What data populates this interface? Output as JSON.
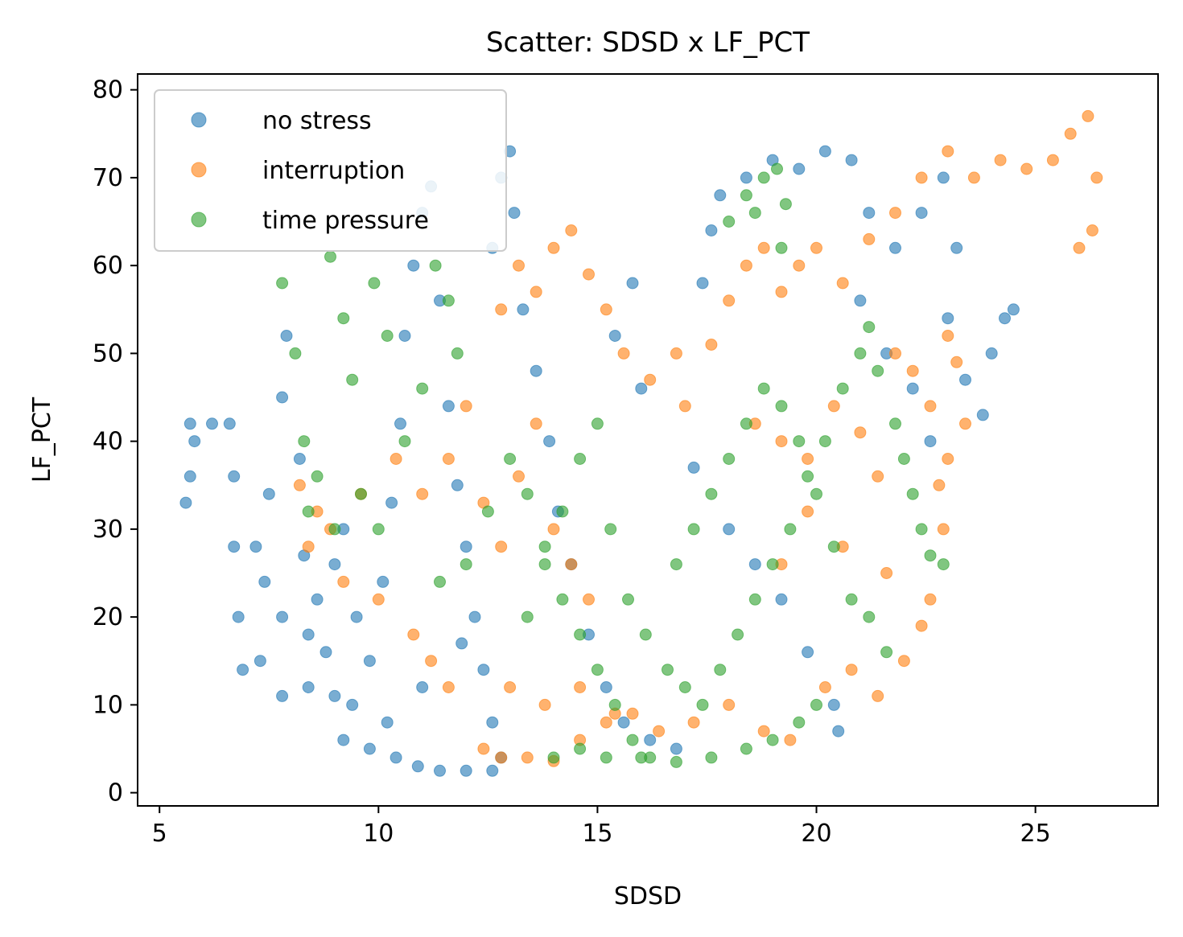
{
  "chart_data": {
    "type": "scatter",
    "title": "Scatter: SDSD x LF_PCT",
    "xlabel": "SDSD",
    "ylabel": "LF_PCT",
    "xlim": [
      4.5,
      27.8
    ],
    "ylim": [
      -1.5,
      81.8
    ],
    "xticks": [
      5,
      10,
      15,
      20,
      25
    ],
    "yticks": [
      0,
      10,
      20,
      30,
      40,
      50,
      60,
      70,
      80
    ],
    "grid": false,
    "legend_position": "top-left",
    "series": [
      {
        "name": "no stress",
        "color": "#1f77b4",
        "points": [
          [
            5.6,
            33
          ],
          [
            5.7,
            36
          ],
          [
            5.8,
            40
          ],
          [
            5.7,
            42
          ],
          [
            6.2,
            42
          ],
          [
            6.6,
            42
          ],
          [
            6.7,
            36
          ],
          [
            6.7,
            28
          ],
          [
            6.8,
            20
          ],
          [
            6.9,
            14
          ],
          [
            7.3,
            15
          ],
          [
            7.8,
            11
          ],
          [
            8.4,
            12
          ],
          [
            9.0,
            11
          ],
          [
            9.4,
            10
          ],
          [
            7.2,
            28
          ],
          [
            7.4,
            24
          ],
          [
            7.5,
            34
          ],
          [
            7.8,
            20
          ],
          [
            7.8,
            45
          ],
          [
            7.9,
            52
          ],
          [
            8.2,
            38
          ],
          [
            8.3,
            27
          ],
          [
            8.4,
            18
          ],
          [
            8.6,
            22
          ],
          [
            8.8,
            16
          ],
          [
            9.0,
            26
          ],
          [
            9.2,
            30
          ],
          [
            9.5,
            20
          ],
          [
            9.8,
            15
          ],
          [
            10.1,
            24
          ],
          [
            10.3,
            33
          ],
          [
            10.5,
            42
          ],
          [
            10.6,
            52
          ],
          [
            10.8,
            60
          ],
          [
            11.0,
            66
          ],
          [
            11.2,
            69
          ],
          [
            11.4,
            56
          ],
          [
            11.6,
            44
          ],
          [
            11.8,
            35
          ],
          [
            12.0,
            28
          ],
          [
            12.2,
            20
          ],
          [
            12.4,
            14
          ],
          [
            12.6,
            8
          ],
          [
            12.8,
            4
          ],
          [
            9.2,
            6
          ],
          [
            9.8,
            5
          ],
          [
            10.4,
            4
          ],
          [
            10.9,
            3
          ],
          [
            11.4,
            2.5
          ],
          [
            12.0,
            2.5
          ],
          [
            12.6,
            2.5
          ],
          [
            10.2,
            8
          ],
          [
            11.0,
            12
          ],
          [
            11.9,
            17
          ],
          [
            12.6,
            62
          ],
          [
            12.8,
            70
          ],
          [
            13.0,
            73
          ],
          [
            13.1,
            66
          ],
          [
            13.3,
            55
          ],
          [
            13.6,
            48
          ],
          [
            13.9,
            40
          ],
          [
            14.1,
            32
          ],
          [
            14.4,
            26
          ],
          [
            14.8,
            18
          ],
          [
            15.2,
            12
          ],
          [
            15.6,
            8
          ],
          [
            16.2,
            6
          ],
          [
            16.8,
            5
          ],
          [
            15.8,
            58
          ],
          [
            15.4,
            52
          ],
          [
            16.0,
            46
          ],
          [
            17.2,
            37
          ],
          [
            18.0,
            30
          ],
          [
            18.6,
            26
          ],
          [
            19.2,
            22
          ],
          [
            19.8,
            16
          ],
          [
            20.4,
            10
          ],
          [
            20.5,
            7
          ],
          [
            17.4,
            58
          ],
          [
            17.6,
            64
          ],
          [
            17.8,
            68
          ],
          [
            18.4,
            70
          ],
          [
            19.0,
            72
          ],
          [
            19.6,
            71
          ],
          [
            20.2,
            73
          ],
          [
            20.8,
            72
          ],
          [
            21.2,
            66
          ],
          [
            21.8,
            62
          ],
          [
            22.4,
            66
          ],
          [
            22.9,
            70
          ],
          [
            23.2,
            62
          ],
          [
            21.0,
            56
          ],
          [
            21.6,
            50
          ],
          [
            22.2,
            46
          ],
          [
            23.0,
            54
          ],
          [
            23.4,
            47
          ],
          [
            23.8,
            43
          ],
          [
            24.0,
            50
          ],
          [
            24.3,
            54
          ],
          [
            24.5,
            55
          ],
          [
            22.6,
            40
          ]
        ]
      },
      {
        "name": "interruption",
        "color": "#ff7f0e",
        "points": [
          [
            8.2,
            35
          ],
          [
            8.4,
            28
          ],
          [
            8.6,
            32
          ],
          [
            8.9,
            30
          ],
          [
            9.2,
            24
          ],
          [
            9.6,
            34
          ],
          [
            10.0,
            22
          ],
          [
            10.4,
            38
          ],
          [
            10.8,
            18
          ],
          [
            11.2,
            15
          ],
          [
            11.6,
            12
          ],
          [
            11.0,
            34
          ],
          [
            11.6,
            38
          ],
          [
            12.0,
            44
          ],
          [
            12.4,
            33
          ],
          [
            12.8,
            28
          ],
          [
            13.2,
            36
          ],
          [
            13.6,
            42
          ],
          [
            14.0,
            30
          ],
          [
            14.4,
            26
          ],
          [
            14.8,
            22
          ],
          [
            12.4,
            5
          ],
          [
            12.8,
            4
          ],
          [
            13.4,
            4
          ],
          [
            14.0,
            3.6
          ],
          [
            14.6,
            6
          ],
          [
            15.2,
            8
          ],
          [
            15.8,
            9
          ],
          [
            16.4,
            7
          ],
          [
            17.2,
            8
          ],
          [
            18.0,
            10
          ],
          [
            18.8,
            7
          ],
          [
            19.4,
            6
          ],
          [
            13.0,
            12
          ],
          [
            13.8,
            10
          ],
          [
            14.6,
            12
          ],
          [
            15.4,
            9
          ],
          [
            12.8,
            55
          ],
          [
            13.2,
            60
          ],
          [
            13.6,
            57
          ],
          [
            14.0,
            62
          ],
          [
            14.4,
            64
          ],
          [
            14.8,
            59
          ],
          [
            15.2,
            55
          ],
          [
            15.6,
            50
          ],
          [
            16.2,
            47
          ],
          [
            16.8,
            50
          ],
          [
            17.0,
            44
          ],
          [
            17.6,
            51
          ],
          [
            18.0,
            56
          ],
          [
            18.4,
            60
          ],
          [
            18.8,
            62
          ],
          [
            19.2,
            57
          ],
          [
            19.6,
            60
          ],
          [
            20.0,
            62
          ],
          [
            20.6,
            58
          ],
          [
            21.2,
            63
          ],
          [
            21.8,
            66
          ],
          [
            22.4,
            70
          ],
          [
            23.0,
            73
          ],
          [
            23.6,
            70
          ],
          [
            24.2,
            72
          ],
          [
            24.8,
            71
          ],
          [
            25.4,
            72
          ],
          [
            25.8,
            75
          ],
          [
            26.2,
            77
          ],
          [
            26.4,
            70
          ],
          [
            26.3,
            64
          ],
          [
            26.0,
            62
          ],
          [
            18.6,
            42
          ],
          [
            19.2,
            40
          ],
          [
            19.8,
            38
          ],
          [
            20.4,
            44
          ],
          [
            21.0,
            41
          ],
          [
            21.4,
            36
          ],
          [
            21.8,
            50
          ],
          [
            22.2,
            48
          ],
          [
            22.6,
            44
          ],
          [
            23.0,
            52
          ],
          [
            23.2,
            49
          ],
          [
            23.4,
            42
          ],
          [
            23.0,
            38
          ],
          [
            22.8,
            35
          ],
          [
            22.9,
            30
          ],
          [
            20.2,
            12
          ],
          [
            20.8,
            14
          ],
          [
            21.4,
            11
          ],
          [
            22.0,
            15
          ],
          [
            22.4,
            19
          ],
          [
            22.6,
            22
          ],
          [
            21.6,
            25
          ],
          [
            20.6,
            28
          ],
          [
            19.8,
            32
          ],
          [
            19.2,
            26
          ]
        ]
      },
      {
        "name": "time pressure",
        "color": "#2ca02c",
        "points": [
          [
            7.8,
            58
          ],
          [
            8.1,
            50
          ],
          [
            8.3,
            40
          ],
          [
            8.6,
            36
          ],
          [
            8.9,
            61
          ],
          [
            9.2,
            54
          ],
          [
            9.4,
            47
          ],
          [
            9.6,
            34
          ],
          [
            9.9,
            58
          ],
          [
            10.2,
            52
          ],
          [
            10.6,
            40
          ],
          [
            11.0,
            46
          ],
          [
            11.3,
            60
          ],
          [
            11.6,
            56
          ],
          [
            11.8,
            50
          ],
          [
            8.4,
            32
          ],
          [
            9.0,
            30
          ],
          [
            10.0,
            30
          ],
          [
            11.4,
            24
          ],
          [
            12.0,
            26
          ],
          [
            12.5,
            32
          ],
          [
            13.0,
            38
          ],
          [
            13.4,
            34
          ],
          [
            13.8,
            28
          ],
          [
            14.2,
            22
          ],
          [
            14.6,
            18
          ],
          [
            15.0,
            14
          ],
          [
            15.4,
            10
          ],
          [
            15.8,
            6
          ],
          [
            16.2,
            4
          ],
          [
            14.0,
            4
          ],
          [
            14.6,
            5
          ],
          [
            15.2,
            4
          ],
          [
            16.0,
            4
          ],
          [
            16.8,
            3.5
          ],
          [
            17.6,
            4
          ],
          [
            18.4,
            5
          ],
          [
            19.0,
            6
          ],
          [
            19.6,
            8
          ],
          [
            20.0,
            10
          ],
          [
            13.4,
            20
          ],
          [
            13.8,
            26
          ],
          [
            14.2,
            32
          ],
          [
            14.6,
            38
          ],
          [
            15.0,
            42
          ],
          [
            15.3,
            30
          ],
          [
            15.7,
            22
          ],
          [
            16.1,
            18
          ],
          [
            16.6,
            14
          ],
          [
            17.0,
            12
          ],
          [
            17.4,
            10
          ],
          [
            17.8,
            14
          ],
          [
            18.2,
            18
          ],
          [
            18.6,
            22
          ],
          [
            19.0,
            26
          ],
          [
            19.4,
            30
          ],
          [
            19.8,
            36
          ],
          [
            20.2,
            40
          ],
          [
            20.6,
            46
          ],
          [
            21.0,
            50
          ],
          [
            21.2,
            53
          ],
          [
            21.4,
            48
          ],
          [
            21.8,
            42
          ],
          [
            22.0,
            38
          ],
          [
            22.2,
            34
          ],
          [
            22.4,
            30
          ],
          [
            22.6,
            27
          ],
          [
            22.9,
            26
          ],
          [
            16.8,
            26
          ],
          [
            17.2,
            30
          ],
          [
            17.6,
            34
          ],
          [
            18.0,
            38
          ],
          [
            18.4,
            42
          ],
          [
            18.8,
            46
          ],
          [
            19.2,
            44
          ],
          [
            19.6,
            40
          ],
          [
            20.0,
            34
          ],
          [
            20.4,
            28
          ],
          [
            20.8,
            22
          ],
          [
            21.2,
            20
          ],
          [
            21.6,
            16
          ],
          [
            18.0,
            65
          ],
          [
            18.4,
            68
          ],
          [
            18.8,
            70
          ],
          [
            19.1,
            71
          ],
          [
            19.3,
            67
          ],
          [
            19.2,
            62
          ],
          [
            18.6,
            66
          ]
        ]
      }
    ]
  }
}
